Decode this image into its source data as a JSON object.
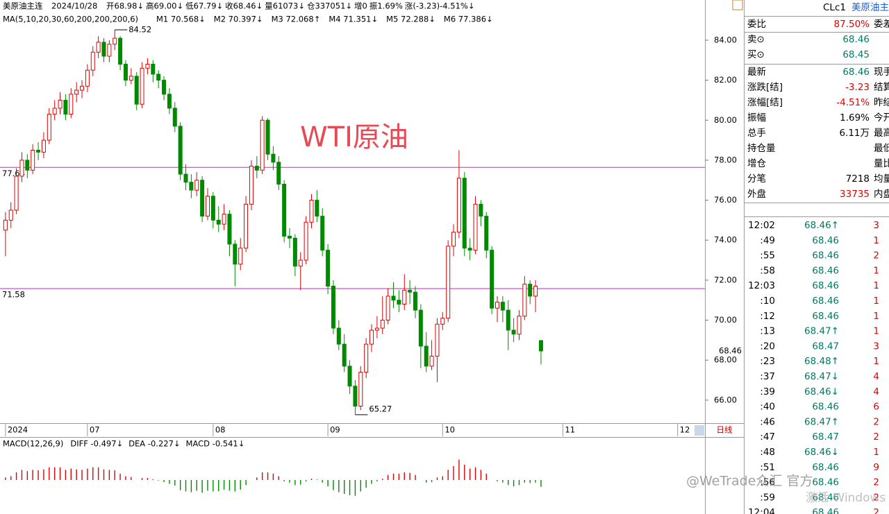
{
  "header": {
    "symbol": "美原油主连",
    "date": "2024/10/28",
    "items": [
      "开68.98↓",
      "高69.00↓",
      "低67.79↓",
      "收68.46↓",
      "量61073↓",
      "仓337051↓",
      "增0",
      "振1.69%",
      "涨(-3.23)-4.51%↓"
    ]
  },
  "ma_legend": {
    "label": "MA(5,10,20,30,60,200,200,200,6)",
    "items": [
      {
        "text": "M1 70.568↓",
        "color": "#1a1a8c"
      },
      {
        "text": "M2 70.397↓",
        "color": "#e06020"
      },
      {
        "text": "M3 72.068↑",
        "color": "#909090"
      },
      {
        "text": "M4 71.351↓",
        "color": "#8b1a1a"
      },
      {
        "text": "M5 72.288↓",
        "color": "#2e8b2e"
      },
      {
        "text": "M6 77.386↓",
        "color": "#30d0e0"
      }
    ]
  },
  "watermark_title": "WTI原油",
  "chart_data": [
    {
      "type": "candlestick",
      "up_color": "#e00000",
      "down_color": "#008a00",
      "open": [
        74.5,
        75.0,
        75.5,
        77.2,
        78.0,
        77.5,
        78.5,
        78.4,
        79.0,
        80.3,
        80.6,
        81.0,
        80.3,
        81.3,
        81.5,
        81.7,
        82.5,
        83.4,
        83.9,
        83.2,
        83.8,
        84.1,
        82.8,
        82.0,
        82.2,
        80.8,
        82.6,
        82.8,
        82.3,
        82.0,
        81.3,
        80.6,
        79.7,
        77.3,
        76.9,
        76.5,
        77.0,
        75.2,
        76.2,
        75.0,
        74.8,
        75.3,
        73.8,
        72.8,
        73.6,
        75.8,
        77.7,
        77.5,
        80.0,
        78.3,
        77.9,
        76.8,
        74.2,
        74.1,
        72.7,
        73.0,
        74.9,
        76.0,
        75.2,
        73.5,
        71.7,
        69.6,
        68.8,
        67.7,
        66.7,
        65.7,
        67.4,
        68.8,
        69.5,
        69.6,
        70.0,
        71.2,
        71.0,
        70.8,
        71.5,
        71.4,
        70.5,
        68.7,
        67.7,
        68.2,
        69.8,
        70.1,
        73.7,
        74.4,
        77.1,
        73.6,
        73.5,
        75.8,
        75.2,
        73.5,
        70.6,
        70.9,
        70.5,
        69.5,
        69.3,
        70.2,
        71.8,
        71.2,
        68.98
      ],
      "high": [
        75.4,
        75.9,
        77.6,
        78.4,
        78.3,
        78.8,
        78.9,
        79.4,
        80.6,
        81.0,
        81.4,
        81.3,
        81.6,
        81.9,
        82.0,
        82.8,
        83.7,
        84.2,
        84.1,
        84.0,
        84.52,
        84.2,
        83.0,
        82.6,
        82.4,
        82.9,
        83.1,
        83.0,
        82.5,
        82.2,
        81.6,
        80.9,
        79.9,
        77.8,
        77.3,
        77.4,
        77.2,
        76.6,
        76.4,
        75.7,
        75.8,
        75.5,
        74.0,
        74.1,
        76.2,
        78.0,
        78.2,
        80.2,
        80.1,
        78.7,
        78.2,
        77.0,
        74.6,
        74.3,
        73.4,
        75.2,
        76.3,
        76.5,
        75.6,
        73.8,
        72.0,
        70.0,
        69.3,
        68.0,
        67.0,
        67.7,
        69.1,
        69.8,
        70.2,
        71.2,
        71.6,
        71.9,
        71.5,
        72.3,
        72.0,
        71.7,
        70.8,
        69.4,
        69.0,
        70.1,
        70.4,
        74.0,
        74.8,
        78.5,
        77.4,
        74.1,
        76.2,
        76.0,
        75.4,
        73.7,
        71.2,
        71.2,
        71.0,
        70.1,
        70.5,
        72.2,
        72.0,
        72.0,
        69.0
      ],
      "low": [
        73.2,
        74.6,
        75.3,
        76.9,
        77.1,
        77.3,
        78.0,
        78.1,
        78.8,
        80.0,
        80.3,
        80.0,
        80.1,
        80.9,
        81.1,
        81.4,
        82.2,
        83.1,
        82.9,
        82.9,
        83.5,
        82.5,
        81.7,
        81.8,
        80.5,
        80.6,
        82.3,
        81.9,
        81.6,
        81.0,
        80.3,
        79.4,
        77.0,
        76.5,
        76.1,
        76.2,
        74.9,
        75.0,
        74.6,
        74.4,
        74.5,
        73.2,
        71.7,
        72.5,
        73.4,
        75.5,
        77.1,
        77.3,
        78.0,
        77.5,
        76.5,
        73.9,
        73.6,
        72.2,
        71.5,
        72.8,
        74.6,
        74.9,
        73.2,
        71.3,
        69.3,
        68.5,
        67.4,
        66.3,
        65.27,
        65.5,
        67.1,
        68.4,
        69.1,
        69.3,
        69.8,
        70.6,
        70.4,
        70.5,
        70.8,
        70.1,
        67.6,
        67.4,
        67.5,
        66.9,
        69.5,
        69.9,
        73.2,
        74.1,
        73.2,
        73.0,
        73.3,
        74.7,
        73.1,
        70.3,
        69.9,
        69.9,
        68.5,
        68.9,
        69.0,
        70.0,
        70.8,
        70.4,
        67.79
      ],
      "close": [
        75.0,
        75.5,
        77.2,
        78.0,
        77.5,
        78.5,
        78.4,
        79.0,
        80.3,
        80.6,
        81.0,
        80.3,
        81.3,
        81.5,
        81.7,
        82.5,
        83.4,
        83.9,
        83.2,
        83.8,
        84.1,
        82.8,
        82.0,
        82.2,
        80.8,
        82.6,
        82.8,
        82.3,
        82.0,
        81.3,
        80.6,
        79.7,
        77.3,
        76.9,
        76.5,
        77.0,
        75.2,
        76.2,
        75.0,
        74.8,
        75.3,
        73.8,
        72.8,
        73.6,
        75.8,
        77.7,
        77.5,
        80.0,
        78.3,
        77.9,
        76.8,
        74.2,
        74.1,
        72.7,
        73.0,
        74.9,
        76.0,
        75.2,
        73.5,
        71.7,
        69.6,
        68.8,
        67.7,
        66.7,
        65.7,
        67.4,
        68.8,
        69.5,
        69.6,
        70.0,
        71.2,
        71.0,
        70.8,
        71.5,
        71.4,
        70.5,
        68.7,
        67.7,
        68.2,
        69.8,
        70.1,
        73.7,
        74.4,
        77.1,
        73.6,
        73.5,
        75.8,
        75.2,
        73.5,
        70.6,
        70.9,
        70.5,
        69.5,
        69.3,
        70.2,
        71.8,
        71.2,
        71.7,
        68.46
      ],
      "ylim": [
        64.85,
        86.01
      ],
      "yticks": [
        {
          "value": 66,
          "label": "66.00"
        },
        {
          "value": 68,
          "label": "68.00"
        },
        {
          "value": 70,
          "label": "70.00"
        },
        {
          "value": 72,
          "label": "72.00"
        },
        {
          "value": 74,
          "label": "74.00"
        },
        {
          "value": 76,
          "label": "76.00"
        },
        {
          "value": 78,
          "label": "78.00"
        },
        {
          "value": 80,
          "label": "80.00"
        },
        {
          "value": 82,
          "label": "82.00"
        },
        {
          "value": 84,
          "label": "84.00"
        }
      ],
      "xlim": [
        -1,
        128
      ],
      "xticks": [
        {
          "value": 0,
          "label": "2024"
        },
        {
          "value": 15,
          "label": "07"
        },
        {
          "value": 38,
          "label": "08"
        },
        {
          "value": 59,
          "label": "09"
        },
        {
          "value": 80,
          "label": "10"
        },
        {
          "value": 102,
          "label": "11"
        },
        {
          "value": 123,
          "label": "12"
        }
      ],
      "hlines": [
        {
          "value": 77.64,
          "label": "77.64",
          "color": "#d020d0"
        },
        {
          "value": 71.58,
          "label": "71.58",
          "color": "#d020d0"
        }
      ]
    },
    {
      "type": "bar",
      "label": "MACD(12,26,9)",
      "items": [
        {
          "text": "DIFF -0.497↓",
          "color": "#1a1a8c"
        },
        {
          "text": "DEA -0.227↓",
          "color": "#e06020"
        },
        {
          "text": "MACD -0.541↓",
          "color": "#808080"
        }
      ],
      "up_color": "#e00000",
      "down_color": "#008a00",
      "values": [
        0.1,
        0.15,
        0.3,
        0.4,
        0.35,
        0.4,
        0.38,
        0.42,
        0.5,
        0.5,
        0.5,
        0.4,
        0.45,
        0.42,
        0.4,
        0.45,
        0.5,
        0.5,
        0.42,
        0.4,
        0.38,
        0.25,
        0.15,
        0.12,
        0.0,
        0.08,
        0.08,
        0.03,
        -0.02,
        -0.08,
        -0.15,
        -0.22,
        -0.4,
        -0.45,
        -0.48,
        -0.42,
        -0.5,
        -0.42,
        -0.45,
        -0.44,
        -0.38,
        -0.42,
        -0.45,
        -0.38,
        -0.2,
        0.0,
        0.1,
        0.3,
        0.3,
        0.25,
        0.15,
        -0.05,
        -0.1,
        -0.2,
        -0.18,
        -0.05,
        0.05,
        0.02,
        -0.1,
        -0.25,
        -0.4,
        -0.48,
        -0.55,
        -0.6,
        -0.62,
        -0.45,
        -0.3,
        -0.15,
        -0.05,
        0.05,
        0.2,
        0.25,
        0.25,
        0.3,
        0.28,
        0.2,
        0.0,
        -0.1,
        -0.08,
        0.1,
        0.15,
        0.4,
        0.55,
        0.8,
        0.6,
        0.45,
        0.5,
        0.4,
        0.25,
        0.0,
        -0.05,
        -0.1,
        -0.2,
        -0.25,
        -0.2,
        -0.1,
        -0.12,
        -0.1,
        -0.27
      ],
      "ylim": [
        -1.2,
        1.2
      ]
    }
  ],
  "quote": {
    "code": "CLc1",
    "name": "美原油主连",
    "rows": [
      {
        "label": "委比",
        "value": "87.50%",
        "label2": "委差",
        "tone": "red"
      },
      {
        "label": "卖⊙",
        "value": "68.46",
        "tone": "green"
      },
      {
        "label": "买⊙",
        "value": "68.45",
        "tone": "green"
      },
      {
        "label": "最新",
        "value": "68.46",
        "label2": "现手",
        "tone": "green"
      },
      {
        "label": "涨跌[结]",
        "value": "-3.23",
        "label2": "结算价",
        "tone": "red"
      },
      {
        "label": "涨幅[结]",
        "value": "-4.51%",
        "label2": "昨结算",
        "tone": "red"
      },
      {
        "label": "振幅",
        "value": "1.69%",
        "label2": "今开",
        "tone": "black"
      },
      {
        "label": "总手",
        "value": "6.11万",
        "label2": "最高",
        "tone": "black"
      },
      {
        "label": "持仓量",
        "label2": "最低",
        "tone": "black"
      },
      {
        "label": "增仓",
        "label2": "量比",
        "tone": "black"
      },
      {
        "label": "分笔",
        "value": "7218",
        "label2": "均量",
        "tone": "black"
      },
      {
        "label": "外盘",
        "value": "33735",
        "label2": "内盘",
        "tone": "red"
      }
    ]
  },
  "ticks": [
    [
      "12:02",
      "68.46↑",
      "3"
    ],
    [
      ":49",
      "68.46",
      "1"
    ],
    [
      ":55",
      "68.46",
      "2"
    ],
    [
      ":58",
      "68.46",
      "1"
    ],
    [
      "12:03",
      "68.46",
      "1"
    ],
    [
      ":10",
      "68.46",
      "1"
    ],
    [
      ":12",
      "68.46",
      "1"
    ],
    [
      ":13",
      "68.47↑",
      "1"
    ],
    [
      ":20",
      "68.47",
      "3"
    ],
    [
      ":23",
      "68.48↑",
      "1"
    ],
    [
      ":37",
      "68.47↓",
      "4"
    ],
    [
      ":39",
      "68.46↓",
      "4"
    ],
    [
      ":40",
      "68.46",
      "6"
    ],
    [
      ":46",
      "68.47↑",
      "2"
    ],
    [
      ":47",
      "68.47",
      "2"
    ],
    [
      ":48",
      "68.46↓",
      "1"
    ],
    [
      ":51",
      "68.46",
      "9"
    ],
    [
      ":56",
      "68.46",
      "2"
    ],
    [
      ":59",
      "68.46",
      "2"
    ],
    [
      "12:04",
      "68.46",
      "2"
    ]
  ],
  "footer": {
    "period": "日线",
    "watermark": "@WeTrade众汇 官方",
    "windows": "激活 Windows"
  }
}
